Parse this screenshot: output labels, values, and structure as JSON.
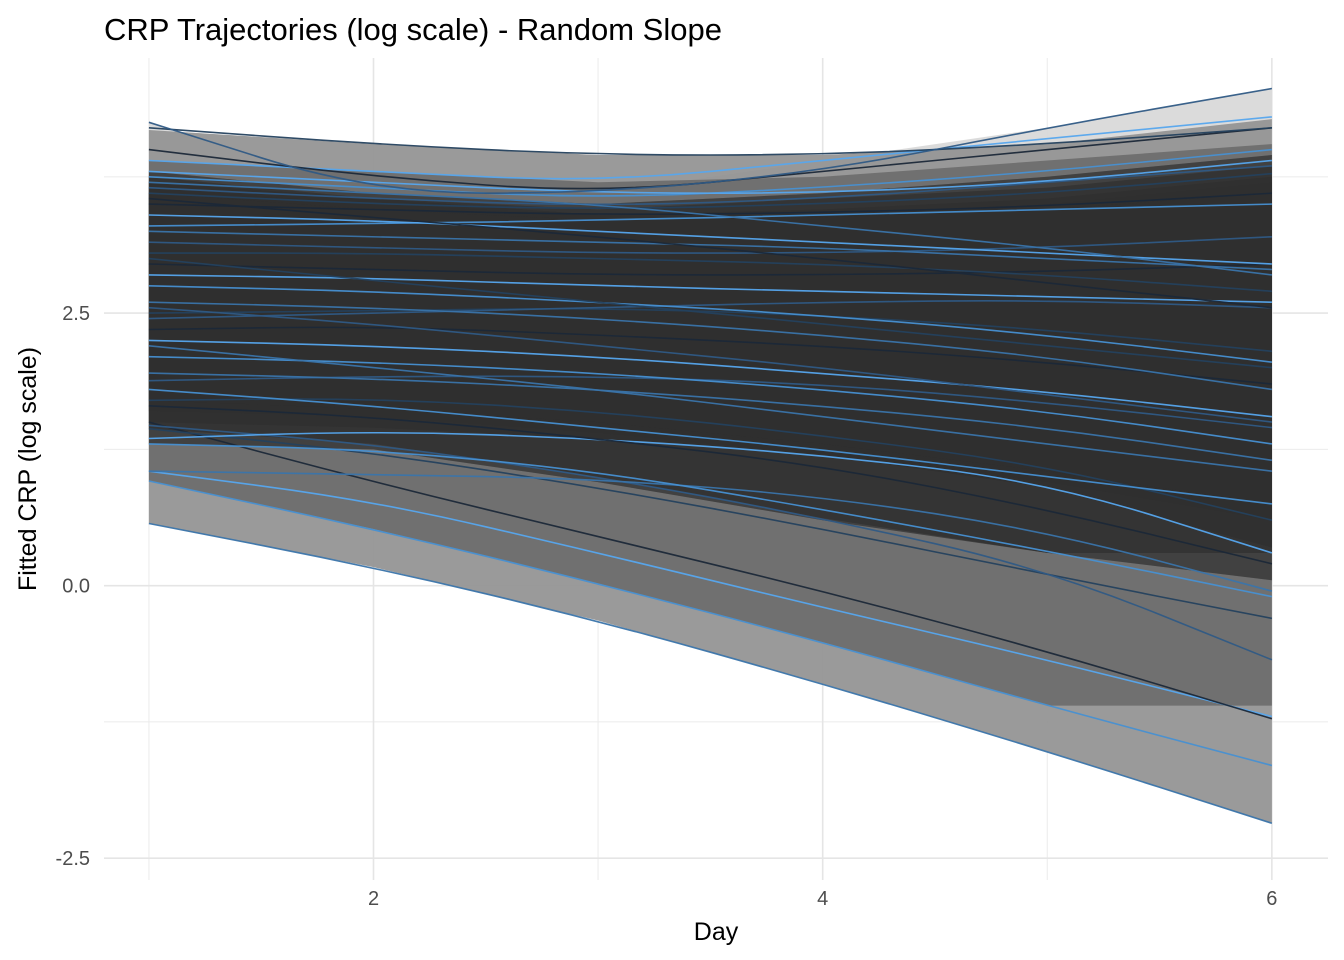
{
  "chart_data": {
    "type": "line",
    "title": "CRP Trajectories (log scale)  - Random Slope",
    "xlabel": "Day",
    "ylabel": "Fitted CRP (log scale)",
    "xlim": [
      0.8,
      6.25
    ],
    "ylim": [
      -2.7,
      4.84
    ],
    "x_ticks": [
      2,
      4,
      6
    ],
    "x_tick_labels": [
      "2",
      "4",
      "6"
    ],
    "y_ticks": [
      -2.5,
      0.0,
      2.5
    ],
    "y_tick_labels": [
      "-2.5",
      "0.0",
      "2.5"
    ],
    "grid": true,
    "x": [
      1,
      2,
      3,
      4,
      5,
      6
    ],
    "ribbon_fill": "#303030",
    "ribbon_light": "#d9d9d9",
    "line_colors": [
      "#1b2838",
      "#24415e",
      "#2f5a85",
      "#3a74aa",
      "#4790d2",
      "#56a6ee"
    ],
    "series": [
      {
        "values": [
          0.57,
          0.17,
          -0.32,
          -0.9,
          -1.52,
          -2.18
        ]
      },
      {
        "values": [
          0.96,
          0.52,
          0.02,
          -0.52,
          -1.1,
          -1.65
        ]
      },
      {
        "values": [
          1.05,
          0.78,
          0.3,
          -0.2,
          -0.68,
          -1.2
        ]
      },
      {
        "values": [
          1.5,
          0.95,
          0.45,
          -0.05,
          -0.6,
          -1.22
        ]
      },
      {
        "values": [
          1.44,
          1.22,
          0.9,
          0.52,
          0.1,
          -0.3
        ]
      },
      {
        "values": [
          1.47,
          1.3,
          1.0,
          0.62,
          0.15,
          -0.68
        ]
      },
      {
        "values": [
          1.05,
          1.02,
          0.98,
          0.82,
          0.5,
          -0.05
        ]
      },
      {
        "values": [
          1.3,
          1.25,
          1.05,
          0.7,
          0.32,
          -0.1
        ]
      },
      {
        "values": [
          1.35,
          1.42,
          1.35,
          1.2,
          0.95,
          0.3
        ]
      },
      {
        "values": [
          1.65,
          1.55,
          1.35,
          1.1,
          0.7,
          0.2
        ]
      },
      {
        "values": [
          1.7,
          1.72,
          1.6,
          1.38,
          1.1,
          0.6
        ]
      },
      {
        "values": [
          1.88,
          1.92,
          1.92,
          1.85,
          1.68,
          1.45
        ]
      },
      {
        "values": [
          1.95,
          1.9,
          1.8,
          1.65,
          1.45,
          1.15
        ]
      },
      {
        "values": [
          2.1,
          2.05,
          1.95,
          1.8,
          1.6,
          1.3
        ]
      },
      {
        "values": [
          2.25,
          2.2,
          2.1,
          1.95,
          1.78,
          1.55
        ]
      },
      {
        "values": [
          2.35,
          2.38,
          2.3,
          2.2,
          2.05,
          1.85
        ]
      },
      {
        "values": [
          2.5,
          2.52,
          2.55,
          2.48,
          2.35,
          2.15
        ]
      },
      {
        "values": [
          2.45,
          2.5,
          2.55,
          2.6,
          2.62,
          2.55
        ]
      },
      {
        "values": [
          2.6,
          2.55,
          2.45,
          2.3,
          2.1,
          1.8
        ]
      },
      {
        "values": [
          2.75,
          2.7,
          2.6,
          2.48,
          2.3,
          2.05
        ]
      },
      {
        "values": [
          2.85,
          2.82,
          2.75,
          2.7,
          2.65,
          2.6
        ]
      },
      {
        "values": [
          2.95,
          2.9,
          2.85,
          2.85,
          2.88,
          2.95
        ]
      },
      {
        "values": [
          3.05,
          3.05,
          3.0,
          2.95,
          2.85,
          2.7
        ]
      },
      {
        "values": [
          3.15,
          3.1,
          3.05,
          3.05,
          3.1,
          3.2
        ]
      },
      {
        "values": [
          3.25,
          3.2,
          3.15,
          3.1,
          3.0,
          2.9
        ]
      },
      {
        "values": [
          3.3,
          3.32,
          3.35,
          3.4,
          3.45,
          3.5
        ]
      },
      {
        "values": [
          3.4,
          3.35,
          3.25,
          3.15,
          3.05,
          2.95
        ]
      },
      {
        "values": [
          3.5,
          3.45,
          3.4,
          3.42,
          3.48,
          3.6
        ]
      },
      {
        "values": [
          3.6,
          3.5,
          3.45,
          3.5,
          3.6,
          3.78
        ]
      },
      {
        "values": [
          3.65,
          3.55,
          3.48,
          3.55,
          3.7,
          3.85
        ]
      },
      {
        "values": [
          3.7,
          3.6,
          3.5,
          3.3,
          3.1,
          2.85
        ]
      },
      {
        "values": [
          3.75,
          3.65,
          3.55,
          3.65,
          3.8,
          4.0
        ]
      },
      {
        "values": [
          3.8,
          3.7,
          3.6,
          3.6,
          3.7,
          3.9
        ]
      },
      {
        "values": [
          3.55,
          3.38,
          3.2,
          3.0,
          2.78,
          2.55
        ]
      },
      {
        "values": [
          3.0,
          2.8,
          2.6,
          2.4,
          2.2,
          2.0
        ]
      },
      {
        "values": [
          2.55,
          2.4,
          2.2,
          2.0,
          1.75,
          1.5
        ]
      },
      {
        "values": [
          2.2,
          2.0,
          1.8,
          1.55,
          1.3,
          1.05
        ]
      },
      {
        "values": [
          1.8,
          1.65,
          1.45,
          1.25,
          1.0,
          0.75
        ]
      },
      {
        "values": [
          3.9,
          3.8,
          3.7,
          3.9,
          4.1,
          4.3
        ]
      },
      {
        "values": [
          4.0,
          3.75,
          3.6,
          3.8,
          4.0,
          4.2
        ]
      },
      {
        "values": [
          4.2,
          4.05,
          3.95,
          3.95,
          4.05,
          4.2
        ]
      },
      {
        "values": [
          4.25,
          3.6,
          3.6,
          3.8,
          4.2,
          4.56
        ]
      }
    ],
    "ribbons": [
      {
        "upper": [
          4.25,
          3.6,
          3.6,
          3.9,
          4.2,
          4.56
        ],
        "lower": [
          1.05,
          1.0,
          0.95,
          0.8,
          0.5,
          -0.05
        ]
      },
      {
        "upper": [
          4.18,
          4.05,
          3.95,
          3.95,
          4.05,
          4.28
        ],
        "lower": [
          0.57,
          0.17,
          -0.32,
          -0.9,
          -1.52,
          -2.18
        ]
      },
      {
        "upper": [
          3.9,
          3.8,
          3.7,
          3.75,
          3.9,
          4.05
        ],
        "lower": [
          0.96,
          0.52,
          0.02,
          -0.52,
          -1.1,
          -1.1
        ]
      },
      {
        "upper": [
          3.8,
          3.6,
          3.5,
          3.6,
          3.75,
          3.95
        ],
        "lower": [
          1.3,
          1.25,
          0.95,
          0.6,
          0.3,
          0.05
        ]
      },
      {
        "upper": [
          3.75,
          3.55,
          3.45,
          3.55,
          3.65,
          3.85
        ],
        "lower": [
          1.44,
          1.3,
          1.0,
          0.62,
          0.3,
          0.3
        ]
      },
      {
        "upper": [
          3.7,
          3.55,
          3.4,
          3.45,
          3.55,
          3.75
        ],
        "lower": [
          1.5,
          1.45,
          1.35,
          1.2,
          0.9,
          0.35
        ]
      },
      {
        "upper": [
          3.65,
          3.5,
          3.4,
          3.4,
          3.5,
          3.7
        ],
        "lower": [
          1.6,
          1.55,
          1.4,
          1.2,
          0.95,
          0.6
        ]
      },
      {
        "upper": [
          3.6,
          3.45,
          3.35,
          3.38,
          3.45,
          3.6
        ],
        "lower": [
          1.7,
          1.62,
          1.5,
          1.3,
          1.05,
          0.75
        ]
      }
    ]
  }
}
